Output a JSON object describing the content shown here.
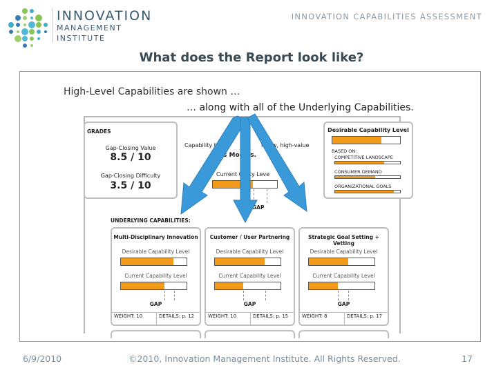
{
  "header": {
    "logo": {
      "line1": "INNOVATION",
      "line2": "MANAGEMENT",
      "line3": "INSTITUTE",
      "dot_colors": [
        "#7bbf42",
        "#2ba3c6",
        "#1d6fa8",
        "#95c95a",
        "#3fb0cf"
      ]
    },
    "section": "INNOVATION  CAPABILITIES  ASSESSMENT"
  },
  "title": "What does the Report look like?",
  "subtitle_left": "High-Level Capabilities are shown …",
  "subtitle_right": "… along with all of the Underlying Capabilities.",
  "report": {
    "grades": {
      "label": "GRADES",
      "gap_value_label": "Gap-Closing Value",
      "gap_value": "8.5 / 10",
      "gap_difficulty_label": "Gap-Closing Difficulty",
      "gap_difficulty": "3.5 / 10"
    },
    "capability_text_left": "Capability to de",
    "capability_text_right": "r new, high-value",
    "models_text": "B      s Models.",
    "current_level_label": "Current Ca      ity Leve",
    "current_level": 0.62,
    "gap_label": "GAP",
    "desirable": {
      "title": "Desirable Capability Level",
      "level": 0.72,
      "based_on": "BASED ON:",
      "items": [
        {
          "label": "COMPETITIVE LANDSCAPE",
          "level": 0.75
        },
        {
          "label": "CONSUMER DEMAND",
          "level": 0.62
        },
        {
          "label": "ORGANIZATIONAL GOALS",
          "level": 0.9
        }
      ]
    },
    "underlying_header": "UNDERLYING CAPABILITIES:",
    "cards": [
      {
        "title": "Multi-Disciplinary Innovation",
        "desirable_label": "Desirable Capability Level",
        "desirable": 0.8,
        "current_label": "Current Capability Level",
        "current": 0.66,
        "gap": "GAP",
        "weight": "WEIGHT: 10",
        "details": "DETAILS: p. 12"
      },
      {
        "title": "Customer / User Partnering",
        "desirable_label": "Desirable Capability Level",
        "desirable": 0.76,
        "current_label": "Current Capability Level",
        "current": 0.43,
        "gap": "GAP",
        "weight": "WEIGHT: 10",
        "details": "DETAILS: p. 15"
      },
      {
        "title": "Strategic Goal Setting + Vetting",
        "desirable_label": "Desirable Capability Level",
        "desirable": 0.6,
        "current_label": "Current Capability Level",
        "current": 0.44,
        "gap": "GAP",
        "weight": "WEIGHT: 8",
        "details": "DETAILS: p. 17"
      }
    ]
  },
  "colors": {
    "accent": "#f49a1a",
    "arrow": "#3a9ad9",
    "title": "#3a4a55"
  },
  "footer": {
    "date": "6/9/2010",
    "copyright": "©2010, Innovation Management Institute. All Rights Reserved.",
    "page": "17"
  }
}
